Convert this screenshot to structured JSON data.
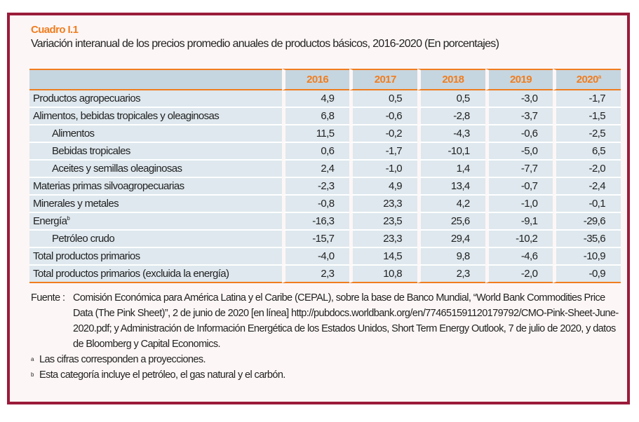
{
  "cuadro": "Cuadro I.1",
  "title": "Variación interanual de los precios promedio anuales de productos básicos, 2016-2020 (En porcentajes)",
  "table": {
    "headers": [
      "2016",
      "2017",
      "2018",
      "2019",
      "2020"
    ],
    "header_note": "a",
    "rows": [
      {
        "label": "Productos agropecuarios",
        "values": [
          "4,9",
          "0,5",
          "0,5",
          "-3,0",
          "-1,7"
        ]
      },
      {
        "label": "Alimentos, bebidas tropicales y oleaginosas",
        "values": [
          "6,8",
          "-0,6",
          "-2,8",
          "-3,7",
          "-1,5"
        ]
      },
      {
        "label": "Alimentos",
        "values": [
          "11,5",
          "-0,2",
          "-4,3",
          "-0,6",
          "-2,5"
        ]
      },
      {
        "label": "Bebidas tropicales",
        "values": [
          "0,6",
          "-1,7",
          "-10,1",
          "-5,0",
          "6,5"
        ]
      },
      {
        "label": "Aceites y semillas oleaginosas",
        "values": [
          "2,4",
          "-1,0",
          "1,4",
          "-7,7",
          "-2,0"
        ]
      },
      {
        "label": "Materias primas silvoagropecuarias",
        "values": [
          "-2,3",
          "4,9",
          "13,4",
          "-0,7",
          "-2,4"
        ]
      },
      {
        "label": "Minerales y metales",
        "values": [
          "-0,8",
          "23,3",
          "4,2",
          "-1,0",
          "-0,1"
        ]
      },
      {
        "label": "Energía",
        "note": "b",
        "values": [
          "-16,3",
          "23,5",
          "25,6",
          "-9,1",
          "-29,6"
        ]
      },
      {
        "label": "Petróleo crudo",
        "values": [
          "-15,7",
          "23,3",
          "29,4",
          "-10,2",
          "-35,6"
        ]
      },
      {
        "label": "Total productos primarios",
        "values": [
          "-4,0",
          "14,5",
          "9,8",
          "-4,6",
          "-10,9"
        ]
      },
      {
        "label": "Total productos primarios (excluida la energía)",
        "values": [
          "2,3",
          "10,8",
          "2,3",
          "-2,0",
          "-0,9"
        ]
      }
    ]
  },
  "source": {
    "label": "Fuente :",
    "text": "Comisión Económica para América Latina y el Caribe (CEPAL), sobre la base de Banco Mundial, “World Bank Commodities Price Data (The Pink Sheet)”, 2 de junio de 2020 [en línea] http://pubdocs.worldbank.org/en/774651591120179792/CMO-Pink-Sheet-June-2020.pdf; y Administración de Información Energética de los Estados Unidos, Short Term Energy Outlook, 7 de julio de 2020, y datos de Bloomberg y Capital Economics."
  },
  "footnotes": [
    {
      "mark": "a",
      "text": "Las cifras corresponden a proyecciones."
    },
    {
      "mark": "b",
      "text": "Esta categoría incluye el petróleo, el gas natural y el carbón."
    }
  ]
}
